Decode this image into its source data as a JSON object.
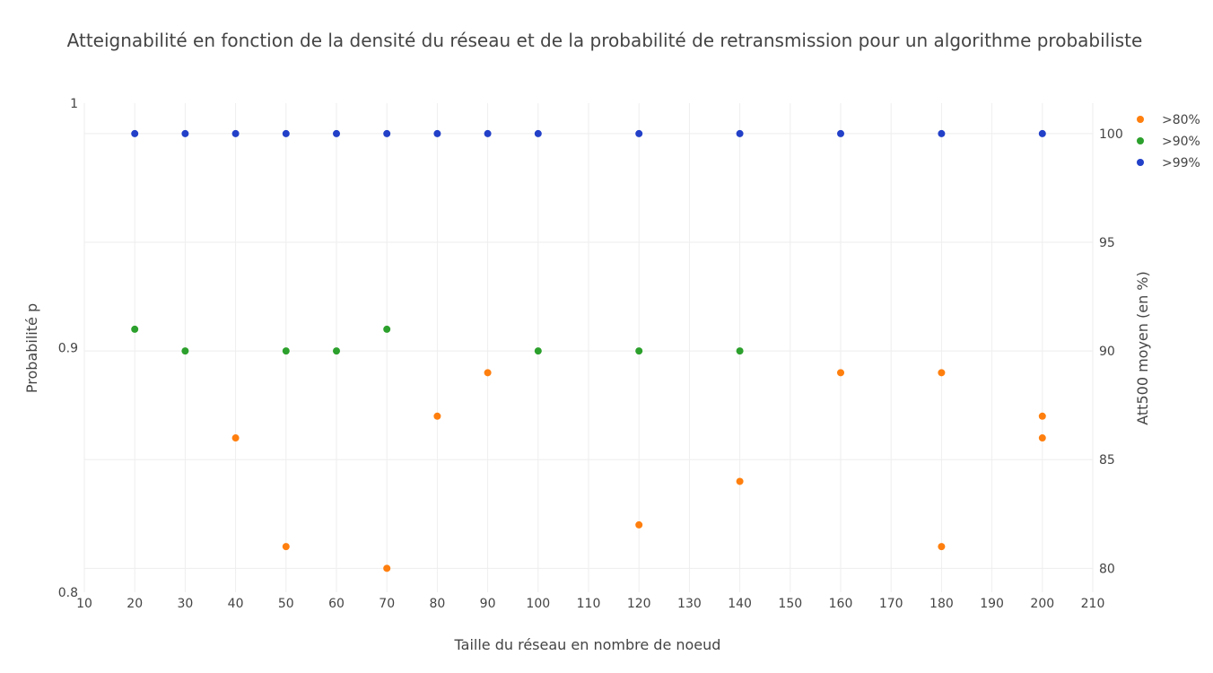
{
  "chart_data": {
    "type": "scatter",
    "title": "Atteignabilité en fonction de la densité du réseau et de la probabilité de retransmission pour un algorithme probabiliste",
    "xlabel": "Taille du réseau en nombre de noeud",
    "ylabel": "Probabilité p",
    "y2label": "Att500 moyen (en %)",
    "xlim": [
      10,
      210
    ],
    "ylim": [
      0.8,
      1.0
    ],
    "y2lim": [
      78.9,
      101.4
    ],
    "x_ticks": [
      "10",
      "20",
      "30",
      "40",
      "50",
      "60",
      "70",
      "80",
      "90",
      "100",
      "110",
      "120",
      "130",
      "140",
      "150",
      "160",
      "170",
      "180",
      "190",
      "200",
      "210"
    ],
    "y_ticks": [
      "0.8",
      "0.9",
      "1"
    ],
    "y2_ticks": [
      "80",
      "85",
      "90",
      "95",
      "100"
    ],
    "grid": true,
    "legend_position": "top-right",
    "series": [
      {
        "name": ">80%",
        "color": "#ff7f0e",
        "points": [
          {
            "x": 40,
            "y": 86
          },
          {
            "x": 50,
            "y": 81
          },
          {
            "x": 70,
            "y": 80
          },
          {
            "x": 80,
            "y": 87
          },
          {
            "x": 90,
            "y": 89
          },
          {
            "x": 120,
            "y": 82
          },
          {
            "x": 140,
            "y": 84
          },
          {
            "x": 160,
            "y": 89
          },
          {
            "x": 180,
            "y": 81
          },
          {
            "x": 180,
            "y": 89
          },
          {
            "x": 200,
            "y": 86
          },
          {
            "x": 200,
            "y": 87
          }
        ]
      },
      {
        "name": ">90%",
        "color": "#2ca02c",
        "points": [
          {
            "x": 20,
            "y": 91
          },
          {
            "x": 30,
            "y": 90
          },
          {
            "x": 50,
            "y": 90
          },
          {
            "x": 60,
            "y": 90
          },
          {
            "x": 70,
            "y": 91
          },
          {
            "x": 100,
            "y": 90
          },
          {
            "x": 120,
            "y": 90
          },
          {
            "x": 140,
            "y": 90
          }
        ]
      },
      {
        "name": ">99%",
        "color": "#2240c8",
        "points": [
          {
            "x": 20,
            "y": 100
          },
          {
            "x": 30,
            "y": 100
          },
          {
            "x": 40,
            "y": 100
          },
          {
            "x": 50,
            "y": 100
          },
          {
            "x": 60,
            "y": 100
          },
          {
            "x": 70,
            "y": 100
          },
          {
            "x": 80,
            "y": 100
          },
          {
            "x": 90,
            "y": 100
          },
          {
            "x": 100,
            "y": 100
          },
          {
            "x": 120,
            "y": 100
          },
          {
            "x": 140,
            "y": 100
          },
          {
            "x": 160,
            "y": 100
          },
          {
            "x": 180,
            "y": 100
          },
          {
            "x": 200,
            "y": 100
          }
        ]
      }
    ]
  }
}
